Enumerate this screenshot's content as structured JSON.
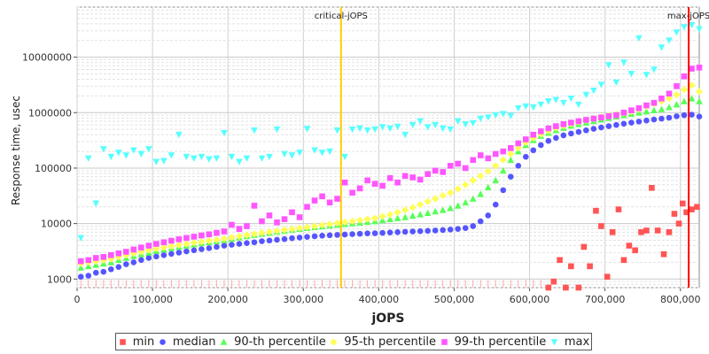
{
  "chart_data": {
    "type": "scatter",
    "title": "",
    "xlabel": "jOPS",
    "ylabel": "Response time, usec",
    "xlim": [
      0,
      825000
    ],
    "ylim": [
      700,
      80000000
    ],
    "y_scale": "log",
    "grid": true,
    "legend_position": "bottom",
    "x_ticks": [
      "0",
      "100,000",
      "200,000",
      "300,000",
      "400,000",
      "500,000",
      "600,000",
      "700,000",
      "800,000"
    ],
    "y_ticks": [
      "1000",
      "10000",
      "100000",
      "1000000",
      "10000000"
    ],
    "annotations": [
      {
        "label": "critical-jOPS",
        "x": 350000,
        "color": "#ffcc00"
      },
      {
        "label": "max-jOPS",
        "x": 811000,
        "color": "#ff0000"
      }
    ],
    "series": [
      {
        "name": "min",
        "color": "#ff5555",
        "marker": "square",
        "x": [
          625000,
          632000,
          640000,
          648000,
          655000,
          665000,
          672000,
          680000,
          688000,
          695000,
          703000,
          710000,
          718000,
          725000,
          732000,
          740000,
          748000,
          755000,
          762000,
          770000,
          778000,
          785000,
          792000,
          798000,
          803000,
          808000,
          815000,
          822000
        ],
        "y": [
          700,
          900,
          2200,
          700,
          1700,
          700,
          3800,
          1700,
          17000,
          9000,
          1100,
          7000,
          18000,
          2200,
          4000,
          3300,
          7000,
          7500,
          44000,
          7500,
          2800,
          7000,
          15000,
          10000,
          23000,
          16000,
          18000,
          20000
        ]
      },
      {
        "name": "median",
        "color": "#5555ff",
        "marker": "circle",
        "x": [
          5000,
          15000,
          25000,
          35000,
          45000,
          55000,
          65000,
          75000,
          85000,
          95000,
          105000,
          115000,
          125000,
          135000,
          145000,
          155000,
          165000,
          175000,
          185000,
          195000,
          205000,
          215000,
          225000,
          235000,
          245000,
          255000,
          265000,
          275000,
          285000,
          295000,
          305000,
          315000,
          325000,
          335000,
          345000,
          355000,
          365000,
          375000,
          385000,
          395000,
          405000,
          415000,
          425000,
          435000,
          445000,
          455000,
          465000,
          475000,
          485000,
          495000,
          505000,
          515000,
          525000,
          535000,
          545000,
          555000,
          565000,
          575000,
          585000,
          595000,
          605000,
          615000,
          625000,
          635000,
          645000,
          655000,
          665000,
          675000,
          685000,
          695000,
          705000,
          715000,
          725000,
          735000,
          745000,
          755000,
          765000,
          775000,
          785000,
          795000,
          805000,
          815000,
          825000
        ],
        "y": [
          1100,
          1150,
          1300,
          1350,
          1500,
          1650,
          1850,
          2000,
          2200,
          2400,
          2550,
          2700,
          2850,
          3000,
          3150,
          3300,
          3450,
          3600,
          3800,
          4000,
          4150,
          4300,
          4450,
          4600,
          4800,
          4950,
          5100,
          5250,
          5450,
          5600,
          5750,
          5900,
          6050,
          6150,
          6250,
          6350,
          6450,
          6550,
          6650,
          6700,
          6800,
          6900,
          7000,
          7100,
          7200,
          7300,
          7400,
          7500,
          7650,
          7800,
          8000,
          8300,
          9000,
          11000,
          14000,
          22000,
          40000,
          70000,
          110000,
          160000,
          210000,
          260000,
          310000,
          350000,
          390000,
          420000,
          450000,
          480000,
          510000,
          540000,
          570000,
          600000,
          630000,
          660000,
          690000,
          720000,
          750000,
          780000,
          810000,
          860000,
          900000,
          920000,
          850000
        ]
      },
      {
        "name": "90-th percentile",
        "color": "#55ff55",
        "marker": "triangle",
        "x": [
          5000,
          15000,
          25000,
          35000,
          45000,
          55000,
          65000,
          75000,
          85000,
          95000,
          105000,
          115000,
          125000,
          135000,
          145000,
          155000,
          165000,
          175000,
          185000,
          195000,
          205000,
          215000,
          225000,
          235000,
          245000,
          255000,
          265000,
          275000,
          285000,
          295000,
          305000,
          315000,
          325000,
          335000,
          345000,
          355000,
          365000,
          375000,
          385000,
          395000,
          405000,
          415000,
          425000,
          435000,
          445000,
          455000,
          465000,
          475000,
          485000,
          495000,
          505000,
          515000,
          525000,
          535000,
          545000,
          555000,
          565000,
          575000,
          585000,
          595000,
          605000,
          615000,
          625000,
          635000,
          645000,
          655000,
          665000,
          675000,
          685000,
          695000,
          705000,
          715000,
          725000,
          735000,
          745000,
          755000,
          765000,
          775000,
          785000,
          795000,
          805000,
          815000,
          825000
        ],
        "y": [
          1600,
          1700,
          1800,
          1900,
          2000,
          2200,
          2400,
          2600,
          2800,
          3000,
          3200,
          3400,
          3600,
          3800,
          4000,
          4200,
          4400,
          4600,
          4800,
          5000,
          5300,
          5600,
          5900,
          6200,
          6500,
          6800,
          7100,
          7400,
          7700,
          8000,
          8300,
          8600,
          8900,
          9200,
          9500,
          9800,
          10100,
          10400,
          10700,
          11000,
          11500,
          12000,
          12500,
          13000,
          13800,
          14600,
          15500,
          16500,
          17500,
          19000,
          21000,
          24000,
          28000,
          34000,
          45000,
          60000,
          90000,
          140000,
          200000,
          260000,
          320000,
          380000,
          430000,
          480000,
          530000,
          580000,
          620000,
          660000,
          700000,
          750000,
          800000,
          850000,
          900000,
          950000,
          1000000,
          1050000,
          1100000,
          1150000,
          1250000,
          1400000,
          1600000,
          1800000,
          1600000
        ]
      },
      {
        "name": "95-th percentile",
        "color": "#ffff55",
        "marker": "diamond",
        "x": [
          5000,
          15000,
          25000,
          35000,
          45000,
          55000,
          65000,
          75000,
          85000,
          95000,
          105000,
          115000,
          125000,
          135000,
          145000,
          155000,
          165000,
          175000,
          185000,
          195000,
          205000,
          215000,
          225000,
          235000,
          245000,
          255000,
          265000,
          275000,
          285000,
          295000,
          305000,
          315000,
          325000,
          335000,
          345000,
          355000,
          365000,
          375000,
          385000,
          395000,
          405000,
          415000,
          425000,
          435000,
          445000,
          455000,
          465000,
          475000,
          485000,
          495000,
          505000,
          515000,
          525000,
          535000,
          545000,
          555000,
          565000,
          575000,
          585000,
          595000,
          605000,
          615000,
          625000,
          635000,
          645000,
          655000,
          665000,
          675000,
          685000,
          695000,
          705000,
          715000,
          725000,
          735000,
          745000,
          755000,
          765000,
          775000,
          785000,
          795000,
          805000,
          815000,
          825000
        ],
        "y": [
          1900,
          2000,
          2100,
          2200,
          2300,
          2500,
          2700,
          2900,
          3100,
          3300,
          3500,
          3700,
          3900,
          4100,
          4300,
          4500,
          4700,
          4900,
          5100,
          5300,
          5600,
          5900,
          6200,
          6500,
          6800,
          7100,
          7400,
          7700,
          8000,
          8300,
          8600,
          9000,
          9400,
          9800,
          10200,
          10600,
          11000,
          11500,
          12000,
          12500,
          13500,
          14500,
          16000,
          17500,
          19500,
          22000,
          25000,
          28000,
          32000,
          36000,
          42000,
          50000,
          60000,
          72000,
          88000,
          110000,
          140000,
          180000,
          230000,
          290000,
          350000,
          410000,
          470000,
          530000,
          580000,
          630000,
          680000,
          730000,
          780000,
          830000,
          880000,
          930000,
          980000,
          1050000,
          1150000,
          1300000,
          1450000,
          1600000,
          1800000,
          2100000,
          2600000,
          3100000,
          2400000
        ]
      },
      {
        "name": "99-th percentile",
        "color": "#ff55ff",
        "marker": "square",
        "x": [
          5000,
          15000,
          25000,
          35000,
          45000,
          55000,
          65000,
          75000,
          85000,
          95000,
          105000,
          115000,
          125000,
          135000,
          145000,
          155000,
          165000,
          175000,
          185000,
          195000,
          205000,
          215000,
          225000,
          235000,
          245000,
          255000,
          265000,
          275000,
          285000,
          295000,
          305000,
          315000,
          325000,
          335000,
          345000,
          355000,
          365000,
          375000,
          385000,
          395000,
          405000,
          415000,
          425000,
          435000,
          445000,
          455000,
          465000,
          475000,
          485000,
          495000,
          505000,
          515000,
          525000,
          535000,
          545000,
          555000,
          565000,
          575000,
          585000,
          595000,
          605000,
          615000,
          625000,
          635000,
          645000,
          655000,
          665000,
          675000,
          685000,
          695000,
          705000,
          715000,
          725000,
          735000,
          745000,
          755000,
          765000,
          775000,
          785000,
          795000,
          805000,
          815000,
          825000
        ],
        "y": [
          2100,
          2200,
          2400,
          2500,
          2700,
          2900,
          3100,
          3400,
          3700,
          4000,
          4300,
          4600,
          4900,
          5200,
          5500,
          5800,
          6100,
          6400,
          6800,
          7200,
          9500,
          8000,
          9000,
          21000,
          11000,
          14000,
          10500,
          12000,
          16000,
          13000,
          20000,
          26000,
          31000,
          24000,
          28000,
          55000,
          36000,
          43000,
          60000,
          52000,
          48000,
          66000,
          55000,
          72000,
          68000,
          62000,
          78000,
          90000,
          85000,
          110000,
          120000,
          100000,
          140000,
          170000,
          150000,
          180000,
          200000,
          230000,
          280000,
          330000,
          400000,
          460000,
          520000,
          570000,
          620000,
          660000,
          700000,
          740000,
          780000,
          820000,
          860000,
          900000,
          1000000,
          1100000,
          1200000,
          1350000,
          1500000,
          1800000,
          2200000,
          3000000,
          4500000,
          6200000,
          6500000
        ]
      },
      {
        "name": "max",
        "color": "#55ffff",
        "marker": "triangle-down",
        "x": [
          5000,
          15000,
          25000,
          35000,
          45000,
          55000,
          65000,
          75000,
          85000,
          95000,
          105000,
          115000,
          125000,
          135000,
          145000,
          155000,
          165000,
          175000,
          185000,
          195000,
          205000,
          215000,
          225000,
          235000,
          245000,
          255000,
          265000,
          275000,
          285000,
          295000,
          305000,
          315000,
          325000,
          335000,
          345000,
          355000,
          365000,
          375000,
          385000,
          395000,
          405000,
          415000,
          425000,
          435000,
          445000,
          455000,
          465000,
          475000,
          485000,
          495000,
          505000,
          515000,
          525000,
          535000,
          545000,
          555000,
          565000,
          575000,
          585000,
          595000,
          605000,
          615000,
          625000,
          635000,
          645000,
          655000,
          665000,
          675000,
          685000,
          695000,
          705000,
          715000,
          725000,
          735000,
          745000,
          755000,
          765000,
          775000,
          785000,
          795000,
          805000,
          815000,
          825000
        ],
        "y": [
          5500,
          150000,
          23000,
          220000,
          160000,
          190000,
          170000,
          210000,
          180000,
          220000,
          130000,
          135000,
          170000,
          400000,
          160000,
          150000,
          160000,
          145000,
          150000,
          430000,
          160000,
          130000,
          150000,
          480000,
          150000,
          160000,
          500000,
          180000,
          170000,
          190000,
          510000,
          210000,
          190000,
          200000,
          480000,
          160000,
          500000,
          520000,
          480000,
          500000,
          550000,
          520000,
          560000,
          400000,
          600000,
          700000,
          550000,
          600000,
          520000,
          500000,
          700000,
          620000,
          650000,
          780000,
          820000,
          900000,
          950000,
          880000,
          1200000,
          1300000,
          1250000,
          1400000,
          1600000,
          1700000,
          1500000,
          1800000,
          1400000,
          2100000,
          2500000,
          3200000,
          7200000,
          3500000,
          8000000,
          5000000,
          22000000,
          4800000,
          6000000,
          15000000,
          20000000,
          28000000,
          35000000,
          38000000,
          32000000
        ]
      }
    ]
  }
}
